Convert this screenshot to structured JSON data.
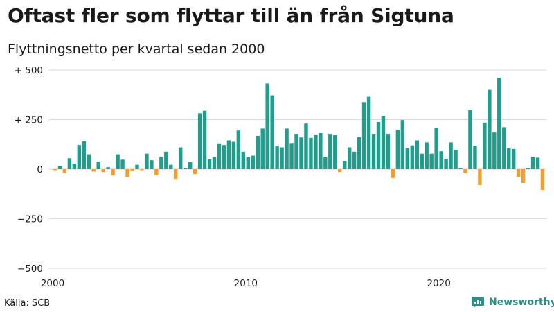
{
  "title": "Oftast fler som flyttar till än från Sigtuna",
  "subtitle": "Flyttningsnetto per kvartal sedan 2000",
  "source": "Källa: SCB",
  "brand": {
    "name": "Newsworthy",
    "icon": "newsworthy-logo-icon"
  },
  "colors": {
    "positive": "#1f9e8d",
    "negative": "#f2a02d",
    "grid": "#d9d9d9",
    "brand": "#2a8f86"
  },
  "chart_data": {
    "type": "bar",
    "unit": "quarter",
    "start": "2000 Q1",
    "values": [
      -5,
      15,
      -20,
      55,
      28,
      122,
      140,
      75,
      -12,
      38,
      -15,
      10,
      -32,
      75,
      48,
      -42,
      -8,
      22,
      -5,
      78,
      45,
      -30,
      62,
      88,
      22,
      -50,
      110,
      5,
      35,
      -25,
      282,
      295,
      50,
      62,
      130,
      122,
      145,
      138,
      195,
      88,
      60,
      68,
      168,
      205,
      432,
      372,
      115,
      110,
      205,
      132,
      178,
      160,
      230,
      158,
      175,
      182,
      62,
      178,
      172,
      -15,
      42,
      110,
      88,
      162,
      338,
      365,
      178,
      238,
      268,
      178,
      -45,
      198,
      248,
      105,
      120,
      145,
      78,
      135,
      78,
      208,
      90,
      52,
      135,
      98,
      5,
      -20,
      298,
      118,
      -80,
      235,
      400,
      185,
      462,
      212,
      105,
      102,
      -40,
      -70,
      5,
      62,
      58,
      -105
    ],
    "ylim": [
      -500,
      500
    ],
    "yticks": [
      500,
      250,
      0,
      -250,
      -500
    ],
    "ytick_labels": [
      "+ 500",
      "+ 250",
      "0",
      "−250",
      "−500"
    ],
    "xticks": [
      {
        "label": "2000",
        "index": 0
      },
      {
        "label": "2010",
        "index": 40
      },
      {
        "label": "2020",
        "index": 80
      }
    ],
    "grid": true,
    "legend": "none"
  }
}
